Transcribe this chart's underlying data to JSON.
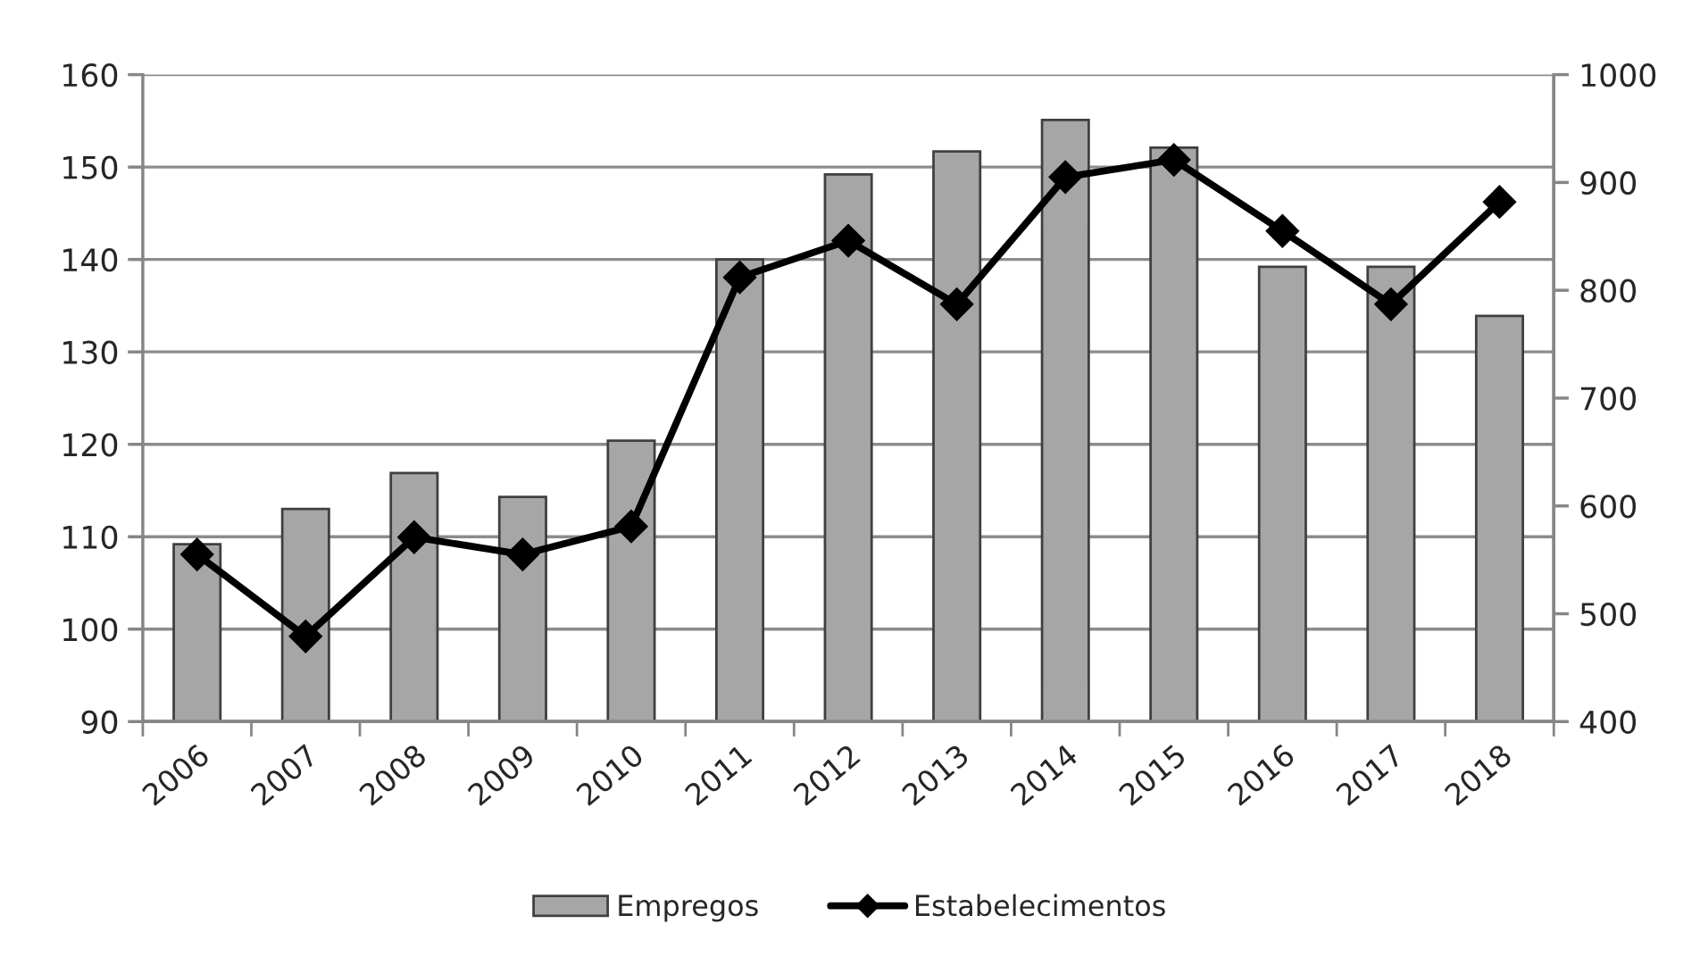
{
  "chart_data": {
    "type": "bar",
    "categories": [
      "2006",
      "2007",
      "2008",
      "2009",
      "2010",
      "2011",
      "2012",
      "2013",
      "2014",
      "2015",
      "2016",
      "2017",
      "2018"
    ],
    "series": [
      {
        "name": "Empregos",
        "color": "#a6a6a6",
        "values": [
          109.2,
          113,
          116.9,
          114.3,
          120.4,
          140,
          149.2,
          151.7,
          155.1,
          152.1,
          139.2,
          139.2,
          133.9
        ]
      },
      {
        "name": "Estabelecimentos",
        "type": "line",
        "axis": "y2",
        "color": "#000000",
        "values": [
          555,
          479,
          571,
          555,
          581,
          812,
          846,
          787,
          905,
          921,
          855,
          787,
          882
        ]
      }
    ],
    "ylim": [
      90,
      160
    ],
    "yticks": [
      90,
      100,
      110,
      120,
      130,
      140,
      150,
      160
    ],
    "y2lim": [
      400,
      1000
    ],
    "y2ticks": [
      400,
      500,
      600,
      700,
      800,
      900,
      1000
    ],
    "grid": "y",
    "legend": "bottom",
    "marker": "diamond"
  }
}
